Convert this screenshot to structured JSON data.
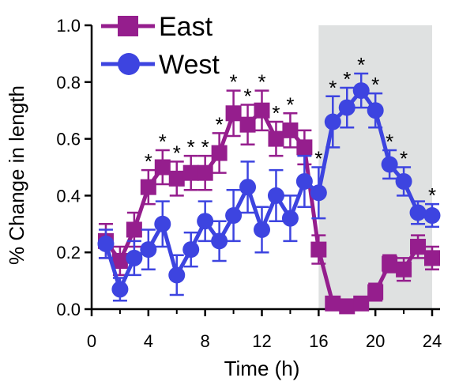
{
  "chart_data": {
    "type": "line",
    "xlabel": "Time (h)",
    "ylabel": "% Change in length",
    "xlim": [
      0,
      24
    ],
    "ylim": [
      0.0,
      1.0
    ],
    "xticks": [
      0,
      4,
      8,
      12,
      16,
      20,
      24
    ],
    "yticks": [
      0.0,
      0.2,
      0.4,
      0.6,
      0.8,
      1.0
    ],
    "xtick_labels": [
      "0",
      "4",
      "8",
      "12",
      "16",
      "20",
      "24"
    ],
    "ytick_labels": [
      "0.0",
      "0.2",
      "0.4",
      "0.6",
      "0.8",
      "1.0"
    ],
    "shaded_region": {
      "x": [
        16,
        24
      ],
      "color": "#dfe1e1"
    },
    "legend": {
      "placement": "top-left"
    },
    "significance_marker": "*",
    "series": [
      {
        "name": "East",
        "color": "#951e8d",
        "marker": "square",
        "x": [
          1,
          2,
          3,
          4,
          5,
          6,
          7,
          8,
          9,
          10,
          11,
          12,
          13,
          14,
          15,
          16,
          17,
          18,
          19,
          20,
          21,
          22,
          23,
          24
        ],
        "y": [
          0.24,
          0.17,
          0.28,
          0.43,
          0.5,
          0.46,
          0.48,
          0.48,
          0.55,
          0.69,
          0.65,
          0.7,
          0.6,
          0.63,
          0.57,
          0.21,
          0.02,
          0.01,
          0.02,
          0.06,
          0.16,
          0.14,
          0.22,
          0.18
        ],
        "err": [
          0.06,
          0.05,
          0.06,
          0.06,
          0.06,
          0.06,
          0.06,
          0.06,
          0.07,
          0.08,
          0.07,
          0.07,
          0.06,
          0.06,
          0.06,
          0.05,
          0.02,
          0.02,
          0.02,
          0.03,
          0.03,
          0.04,
          0.04,
          0.04
        ],
        "significant": [
          false,
          false,
          false,
          true,
          true,
          true,
          true,
          true,
          true,
          true,
          true,
          true,
          true,
          true,
          false,
          false,
          false,
          false,
          false,
          false,
          false,
          false,
          false,
          false
        ]
      },
      {
        "name": "West",
        "color": "#3d44e0",
        "marker": "circle",
        "x": [
          1,
          2,
          3,
          4,
          5,
          6,
          7,
          8,
          9,
          10,
          11,
          12,
          13,
          14,
          15,
          16,
          17,
          18,
          19,
          20,
          21,
          22,
          23,
          24
        ],
        "y": [
          0.23,
          0.07,
          0.18,
          0.21,
          0.3,
          0.12,
          0.21,
          0.31,
          0.24,
          0.33,
          0.43,
          0.28,
          0.4,
          0.32,
          0.45,
          0.41,
          0.66,
          0.71,
          0.77,
          0.7,
          0.51,
          0.45,
          0.34,
          0.33
        ],
        "err": [
          0.05,
          0.04,
          0.06,
          0.07,
          0.08,
          0.07,
          0.06,
          0.07,
          0.07,
          0.09,
          0.09,
          0.08,
          0.09,
          0.08,
          0.09,
          0.09,
          0.09,
          0.07,
          0.06,
          0.06,
          0.05,
          0.05,
          0.04,
          0.04
        ],
        "significant": [
          false,
          false,
          false,
          false,
          false,
          false,
          false,
          false,
          false,
          false,
          false,
          false,
          false,
          false,
          false,
          true,
          true,
          true,
          true,
          true,
          true,
          true,
          false,
          true
        ]
      }
    ]
  }
}
